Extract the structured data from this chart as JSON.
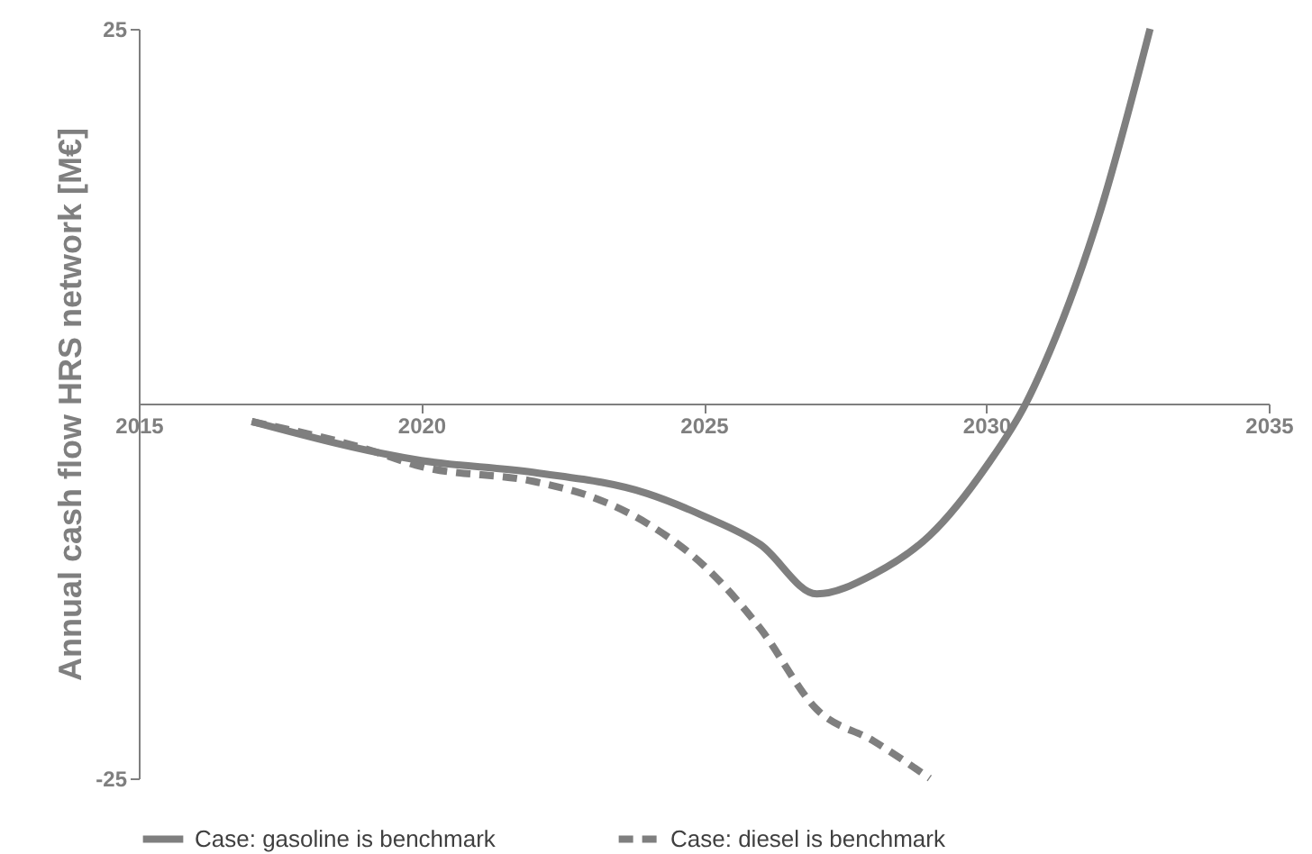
{
  "chart_data": {
    "type": "line",
    "ylabel": "Annual cash flow HRS network [M€]",
    "xlim": [
      2015,
      2035
    ],
    "xticks": [
      2015,
      2020,
      2025,
      2030,
      2035
    ],
    "ylim": [
      -25,
      25
    ],
    "yticks": [
      -25,
      25
    ],
    "grid": false,
    "legend": "bottom",
    "marker": "none",
    "series": [
      {
        "name": "Case: gasoline is benchmark",
        "color": "#7f7f7f",
        "line_style": "solid",
        "x": [
          2017,
          2020,
          2022,
          2024,
          2025,
          2026,
          2027,
          2028,
          2029,
          2030,
          2030.7,
          2031,
          2032,
          2032.9
        ],
        "values": [
          -1.2,
          -3.8,
          -4.6,
          -6,
          -7.5,
          -9.4,
          -12.7,
          -11.4,
          -8.8,
          -4.2,
          0,
          2.4,
          12.6,
          25
        ]
      },
      {
        "name": "Case: diesel is benchmark",
        "color": "#7f7f7f",
        "line_style": "dashed",
        "x": [
          2017,
          2019,
          2020,
          2022,
          2023,
          2024,
          2025,
          2026,
          2027,
          2028,
          2029
        ],
        "values": [
          -1.2,
          -3,
          -4.2,
          -5.2,
          -6.2,
          -8,
          -10.8,
          -15,
          -20.4,
          -22.5,
          -25
        ]
      }
    ]
  }
}
